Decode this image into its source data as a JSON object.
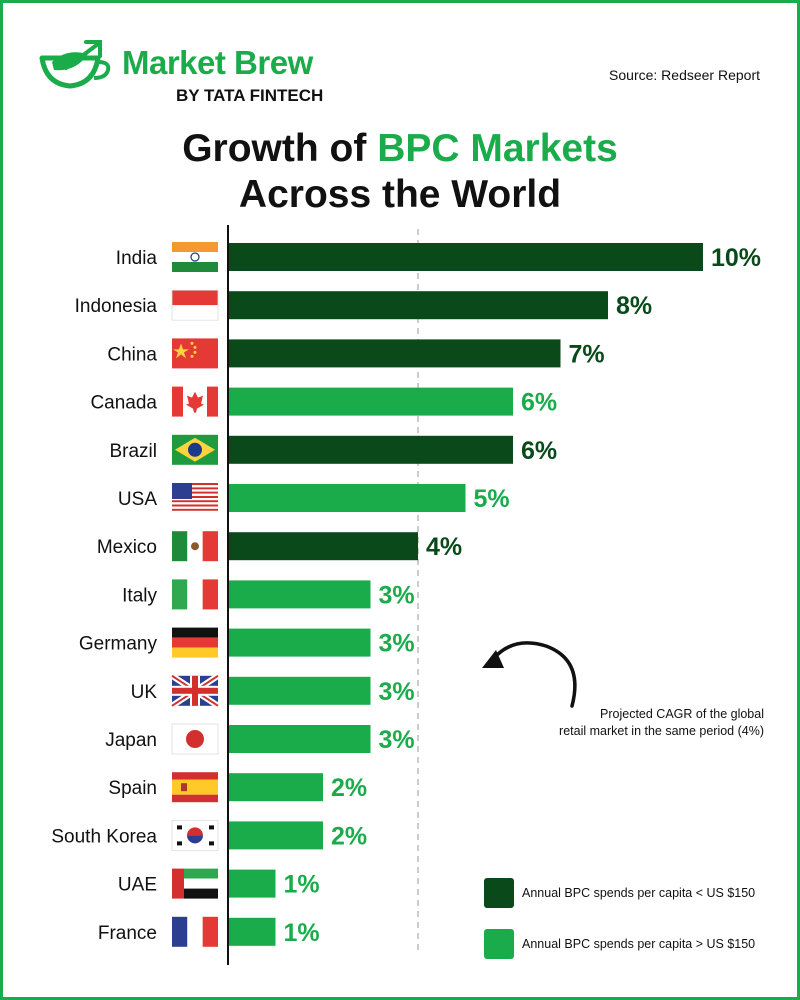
{
  "brand": {
    "name": "Market Brew",
    "byline": "BY TATA FINTECH"
  },
  "source": "Source: Redseer Report",
  "title": {
    "part1": "Growth of ",
    "accent": "BPC Markets",
    "line2": "Across the World"
  },
  "colors": {
    "dark_green": "#0a4a1a",
    "light_green": "#1aac4b",
    "border": "#1aac4b",
    "text": "#111111"
  },
  "chart_data": {
    "type": "bar",
    "orientation": "horizontal",
    "categories": [
      "India",
      "Indonesia",
      "China",
      "Canada",
      "Brazil",
      "USA",
      "Mexico",
      "Italy",
      "Germany",
      "UK",
      "Japan",
      "Spain",
      "South Korea",
      "UAE",
      "France"
    ],
    "values": [
      10,
      8,
      7,
      6,
      6,
      5,
      4,
      3,
      3,
      3,
      3,
      2,
      2,
      1,
      1
    ],
    "value_labels": [
      "10%",
      "8%",
      "7%",
      "6%",
      "6%",
      "5%",
      "4%",
      "3%",
      "3%",
      "3%",
      "3%",
      "2%",
      "2%",
      "1%",
      "1%"
    ],
    "groups": [
      "low",
      "low",
      "low",
      "high",
      "low",
      "high",
      "low",
      "high",
      "high",
      "high",
      "high",
      "high",
      "high",
      "high",
      "high"
    ],
    "flags": [
      "india-flag-icon",
      "indonesia-flag-icon",
      "china-flag-icon",
      "canada-flag-icon",
      "brazil-flag-icon",
      "usa-flag-icon",
      "mexico-flag-icon",
      "italy-flag-icon",
      "germany-flag-icon",
      "uk-flag-icon",
      "japan-flag-icon",
      "spain-flag-icon",
      "south-korea-flag-icon",
      "uae-flag-icon",
      "france-flag-icon"
    ],
    "reference_line": {
      "value": 4,
      "style": "dashed"
    },
    "xlim": [
      0,
      10
    ],
    "legend": [
      {
        "key": "low",
        "label": "Annual BPC spends per capita < US $150",
        "color": "#0a4a1a"
      },
      {
        "key": "high",
        "label": "Annual BPC spends per capita > US $150",
        "color": "#1aac4b"
      }
    ],
    "legend_position": "bottom-right"
  },
  "annotation": {
    "line1": "Projected CAGR of the global",
    "line2": "retail market in the same period (4%)"
  }
}
